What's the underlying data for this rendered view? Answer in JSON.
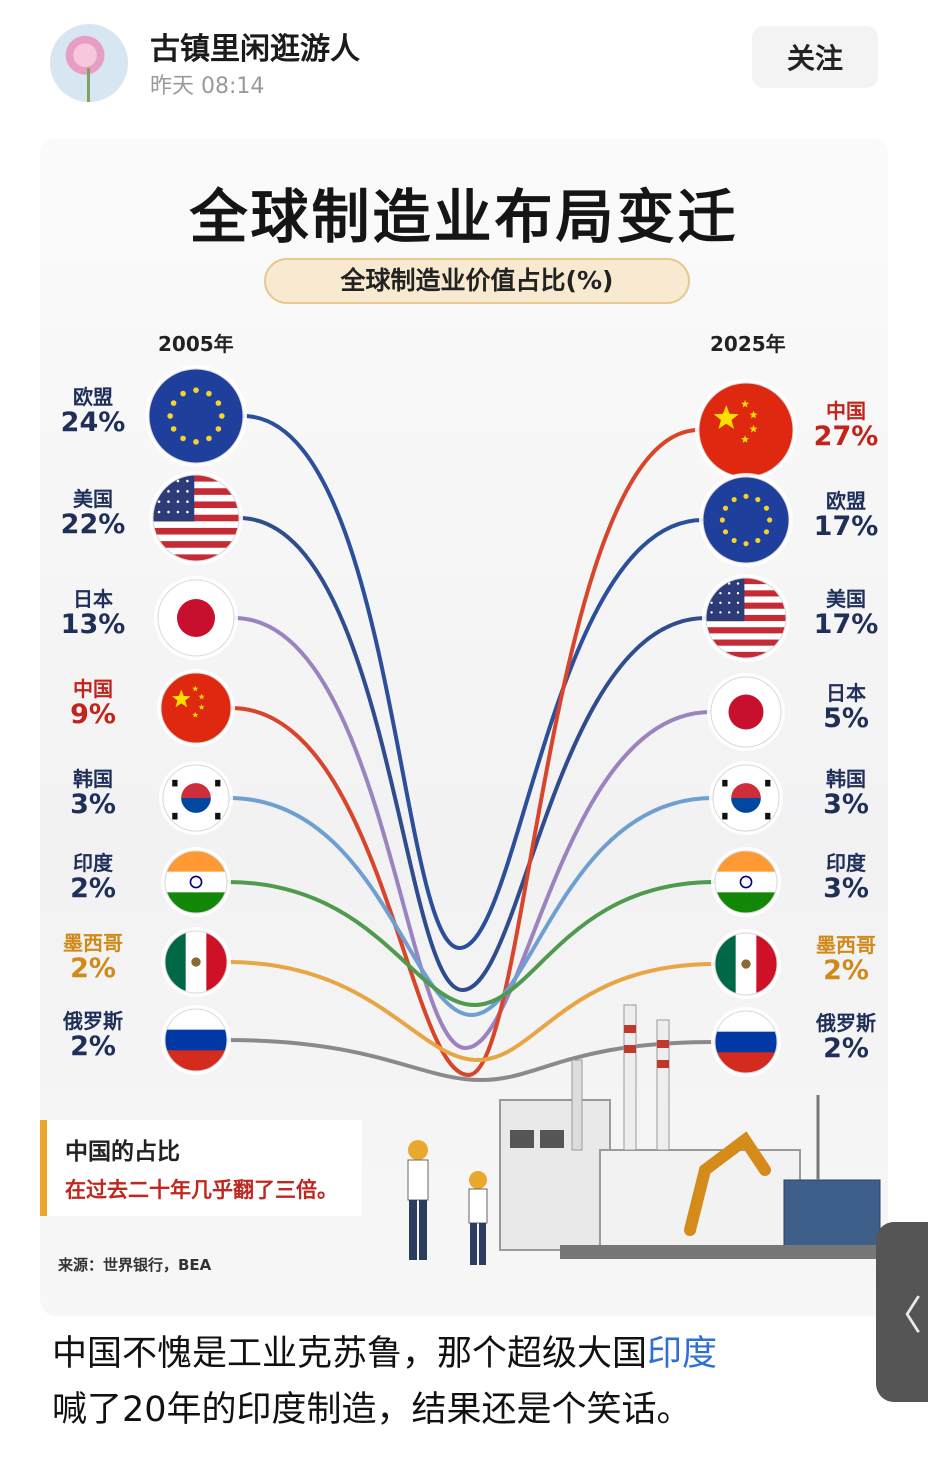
{
  "post": {
    "author": "古镇里闲逛游人",
    "time": "昨天  08:14",
    "follow_label": "关注",
    "text_before_link": "中国不愧是工业克苏鲁，那个超级大国",
    "link_text": "印度",
    "text_after_link": "喊了20年的印度制造，结果还是个笑话。"
  },
  "side_tab": {
    "icon": "chevron-left-icon",
    "glyph": "〈"
  },
  "infographic": {
    "title": "全球制造业布局变迁",
    "subtitle": "全球制造业价值占比(%)",
    "left_year": "2005年",
    "right_year": "2025年",
    "note_title": "中国的占比",
    "note_body": "在过去二十年几乎翻了三倍。",
    "source": "来源：世界银行，BEA"
  },
  "chart_data": {
    "type": "slope",
    "unit": "%",
    "years": [
      "2005年",
      "2025年"
    ],
    "left": [
      {
        "country": "欧盟",
        "value": "24%",
        "flag": "eu"
      },
      {
        "country": "美国",
        "value": "22%",
        "flag": "us"
      },
      {
        "country": "日本",
        "value": "13%",
        "flag": "jp"
      },
      {
        "country": "中国",
        "value": "9%",
        "flag": "cn"
      },
      {
        "country": "韩国",
        "value": "3%",
        "flag": "kr"
      },
      {
        "country": "印度",
        "value": "2%",
        "flag": "in"
      },
      {
        "country": "墨西哥",
        "value": "2%",
        "flag": "mx"
      },
      {
        "country": "俄罗斯",
        "value": "2%",
        "flag": "ru"
      }
    ],
    "right": [
      {
        "country": "中国",
        "value": "27%",
        "flag": "cn"
      },
      {
        "country": "欧盟",
        "value": "17%",
        "flag": "eu"
      },
      {
        "country": "美国",
        "value": "17%",
        "flag": "us"
      },
      {
        "country": "日本",
        "value": "5%",
        "flag": "jp"
      },
      {
        "country": "韩国",
        "value": "3%",
        "flag": "kr"
      },
      {
        "country": "印度",
        "value": "3%",
        "flag": "in"
      },
      {
        "country": "墨西哥",
        "value": "2%",
        "flag": "mx"
      },
      {
        "country": "俄罗斯",
        "value": "2%",
        "flag": "ru"
      }
    ],
    "colors": {
      "欧盟": "#2c4f9c",
      "美国": "#2f4d8e",
      "日本": "#9b83bf",
      "中国": "#d8452b",
      "韩国": "#6f9fd1",
      "印度": "#4f9a4e",
      "墨西哥": "#e8a545",
      "俄罗斯": "#8a8a8a"
    },
    "label_colors": {
      "欧盟": "#1f2f5a",
      "美国": "#1f2f5a",
      "日本": "#1f2f5a",
      "中国": "#c4231c",
      "韩国": "#1f2f5a",
      "印度": "#1f2f5a",
      "墨西哥": "#d08a19",
      "俄罗斯": "#1f2f5a"
    }
  }
}
